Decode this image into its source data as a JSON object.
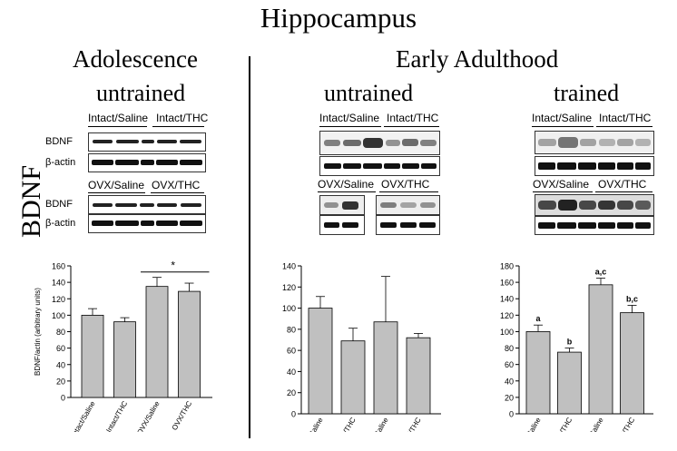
{
  "figure": {
    "title": "Hippocampus",
    "y_axis_label": "BDNF",
    "adolescence": {
      "heading": "Adolescence",
      "subheading": "untrained",
      "blot_groups": [
        "Intact/Saline",
        "Intact/THC",
        "OVX/Saline",
        "OVX/THC"
      ],
      "blot_rows": [
        "BDNF",
        "β-actin",
        "BDNF",
        "β-actin"
      ]
    },
    "early_adulthood": {
      "heading": "Early Adulthood",
      "untrained": {
        "subheading": "untrained",
        "blot_groups": [
          "Intact/Saline",
          "Intact/THC",
          "OVX/Saline",
          "OVX/THC"
        ]
      },
      "trained": {
        "subheading": "trained",
        "blot_groups": [
          "Intact/Saline",
          "Intact/THC",
          "OVX/Saline",
          "OVX/THC"
        ]
      }
    },
    "colors": {
      "bar_fill": "#c0c0c0",
      "axis": "#000000",
      "blot_band": "#111111"
    }
  },
  "chart_data": [
    {
      "type": "bar",
      "panel": "Adolescence untrained",
      "categories": [
        "Intact/Saline",
        "Intact/THC",
        "OVX/Saline",
        "OVX/THC"
      ],
      "values": [
        100,
        92,
        135,
        129
      ],
      "errors": [
        8,
        5,
        11,
        10
      ],
      "ylabel": "BDNF/actin (arbitrary units)",
      "ylim": [
        0,
        160
      ],
      "yticks": [
        0,
        20,
        40,
        60,
        80,
        100,
        120,
        140,
        160
      ],
      "significance": {
        "label": "*",
        "between": [
          2,
          3
        ]
      }
    },
    {
      "type": "bar",
      "panel": "Early Adulthood untrained",
      "categories": [
        "Intact/Saline",
        "Intact/THC",
        "OVX/Saline",
        "OVX/THC"
      ],
      "values": [
        100,
        69,
        87,
        72
      ],
      "errors": [
        11,
        12,
        43,
        4
      ],
      "ylabel": "",
      "ylim": [
        0,
        140
      ],
      "yticks": [
        0,
        20,
        40,
        60,
        80,
        100,
        120,
        140
      ]
    },
    {
      "type": "bar",
      "panel": "Early Adulthood trained",
      "categories": [
        "intact/Saline",
        "intact/THC",
        "OVX/Saline",
        "OVX/THC"
      ],
      "values": [
        100,
        75,
        157,
        123
      ],
      "errors": [
        8,
        5,
        8,
        9
      ],
      "ylabel": "",
      "ylim": [
        0,
        180
      ],
      "yticks": [
        0,
        20,
        40,
        60,
        80,
        100,
        120,
        140,
        160,
        180
      ],
      "bar_labels": [
        "a",
        "b",
        "a,c",
        "b,c"
      ]
    }
  ]
}
